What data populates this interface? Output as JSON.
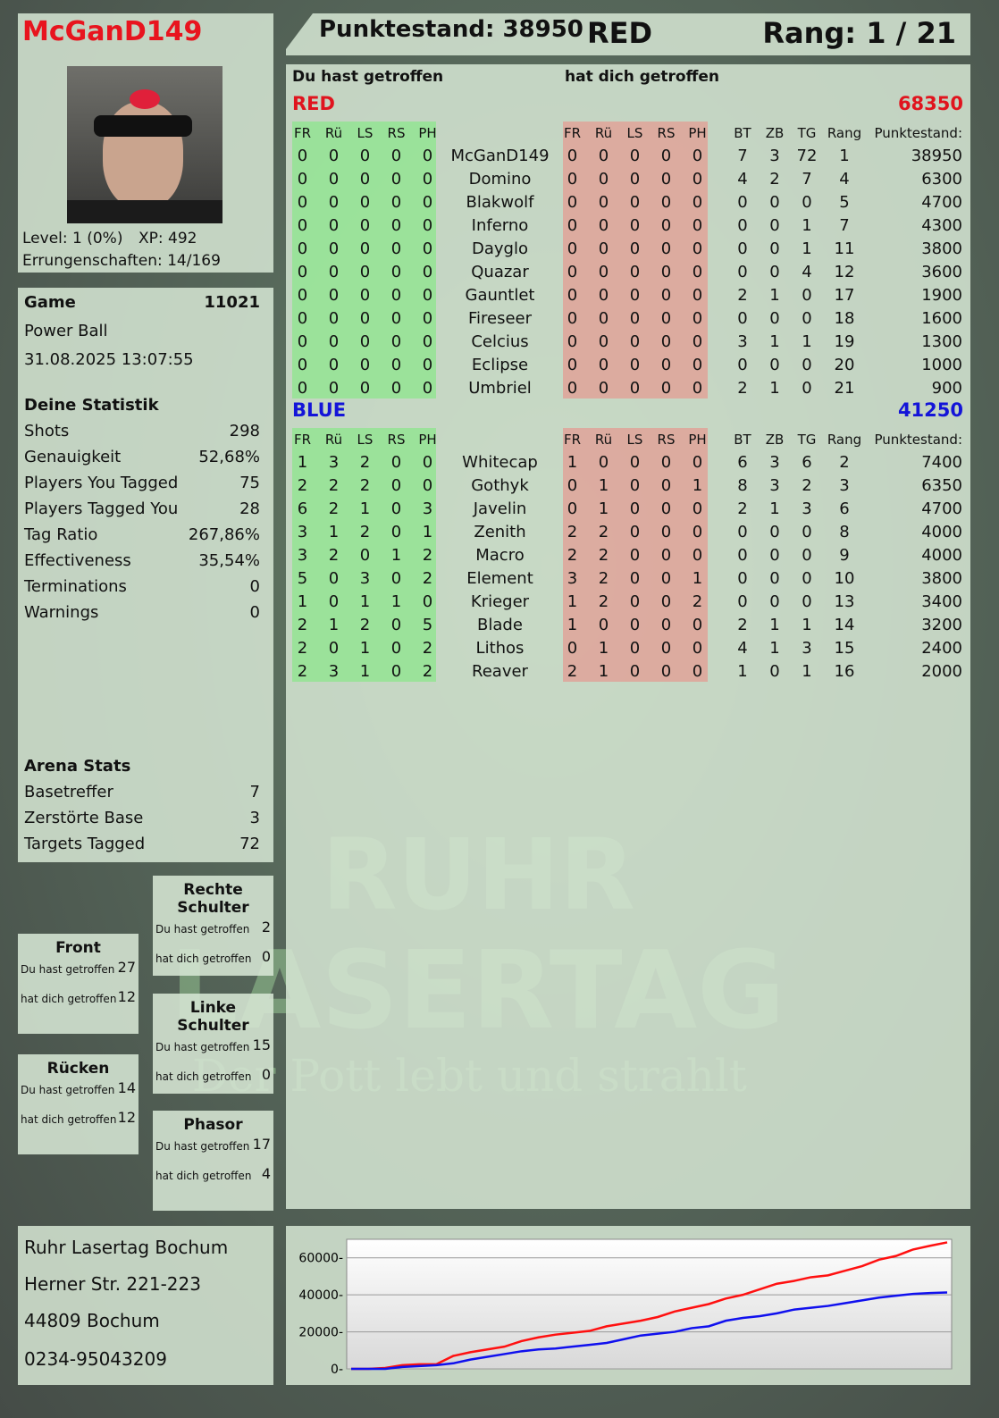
{
  "player": {
    "name": "McGanD149",
    "level": "Level: 1 (0%)",
    "xp": "XP: 492",
    "achievements": "Errungenschaften: 14/169"
  },
  "header": {
    "score": "Punktestand: 38950",
    "team": "RED",
    "rank": "Rang: 1 / 21"
  },
  "main": {
    "you_hit": "Du hast getroffen",
    "hit_you": "hat dich getroffen",
    "columns": [
      "FR",
      "Rü",
      "LS",
      "RS",
      "PH",
      "FR",
      "Rü",
      "LS",
      "RS",
      "PH",
      "BT",
      "ZB",
      "TG",
      "Rang",
      "Punktestand:"
    ],
    "teams": [
      {
        "name": "RED",
        "total": "68350",
        "color": "#e0141e",
        "rows": [
          [
            "0",
            "0",
            "0",
            "0",
            "0",
            "McGanD149",
            "0",
            "0",
            "0",
            "0",
            "0",
            "7",
            "3",
            "72",
            "1",
            "38950"
          ],
          [
            "0",
            "0",
            "0",
            "0",
            "0",
            "Domino",
            "0",
            "0",
            "0",
            "0",
            "0",
            "4",
            "2",
            "7",
            "4",
            "6300"
          ],
          [
            "0",
            "0",
            "0",
            "0",
            "0",
            "Blakwolf",
            "0",
            "0",
            "0",
            "0",
            "0",
            "0",
            "0",
            "0",
            "5",
            "4700"
          ],
          [
            "0",
            "0",
            "0",
            "0",
            "0",
            "Inferno",
            "0",
            "0",
            "0",
            "0",
            "0",
            "0",
            "0",
            "1",
            "7",
            "4300"
          ],
          [
            "0",
            "0",
            "0",
            "0",
            "0",
            "Dayglo",
            "0",
            "0",
            "0",
            "0",
            "0",
            "0",
            "0",
            "1",
            "11",
            "3800"
          ],
          [
            "0",
            "0",
            "0",
            "0",
            "0",
            "Quazar",
            "0",
            "0",
            "0",
            "0",
            "0",
            "0",
            "0",
            "4",
            "12",
            "3600"
          ],
          [
            "0",
            "0",
            "0",
            "0",
            "0",
            "Gauntlet",
            "0",
            "0",
            "0",
            "0",
            "0",
            "2",
            "1",
            "0",
            "17",
            "1900"
          ],
          [
            "0",
            "0",
            "0",
            "0",
            "0",
            "Fireseer",
            "0",
            "0",
            "0",
            "0",
            "0",
            "0",
            "0",
            "0",
            "18",
            "1600"
          ],
          [
            "0",
            "0",
            "0",
            "0",
            "0",
            "Celcius",
            "0",
            "0",
            "0",
            "0",
            "0",
            "3",
            "1",
            "1",
            "19",
            "1300"
          ],
          [
            "0",
            "0",
            "0",
            "0",
            "0",
            "Eclipse",
            "0",
            "0",
            "0",
            "0",
            "0",
            "0",
            "0",
            "0",
            "20",
            "1000"
          ],
          [
            "0",
            "0",
            "0",
            "0",
            "0",
            "Umbriel",
            "0",
            "0",
            "0",
            "0",
            "0",
            "2",
            "1",
            "0",
            "21",
            "900"
          ]
        ]
      },
      {
        "name": "BLUE",
        "total": "41250",
        "color": "#1414d8",
        "rows": [
          [
            "1",
            "3",
            "2",
            "0",
            "0",
            "Whitecap",
            "1",
            "0",
            "0",
            "0",
            "0",
            "6",
            "3",
            "6",
            "2",
            "7400"
          ],
          [
            "2",
            "2",
            "2",
            "0",
            "0",
            "Gothyk",
            "0",
            "1",
            "0",
            "0",
            "1",
            "8",
            "3",
            "2",
            "3",
            "6350"
          ],
          [
            "6",
            "2",
            "1",
            "0",
            "3",
            "Javelin",
            "0",
            "1",
            "0",
            "0",
            "0",
            "2",
            "1",
            "3",
            "6",
            "4700"
          ],
          [
            "3",
            "1",
            "2",
            "0",
            "1",
            "Zenith",
            "2",
            "2",
            "0",
            "0",
            "0",
            "0",
            "0",
            "0",
            "8",
            "4000"
          ],
          [
            "3",
            "2",
            "0",
            "1",
            "2",
            "Macro",
            "2",
            "2",
            "0",
            "0",
            "0",
            "0",
            "0",
            "0",
            "9",
            "4000"
          ],
          [
            "5",
            "0",
            "3",
            "0",
            "2",
            "Element",
            "3",
            "2",
            "0",
            "0",
            "1",
            "0",
            "0",
            "0",
            "10",
            "3800"
          ],
          [
            "1",
            "0",
            "1",
            "1",
            "0",
            "Krieger",
            "1",
            "2",
            "0",
            "0",
            "2",
            "0",
            "0",
            "0",
            "13",
            "3400"
          ],
          [
            "2",
            "1",
            "2",
            "0",
            "5",
            "Blade",
            "1",
            "0",
            "0",
            "0",
            "0",
            "2",
            "1",
            "1",
            "14",
            "3200"
          ],
          [
            "2",
            "0",
            "1",
            "0",
            "2",
            "Lithos",
            "0",
            "1",
            "0",
            "0",
            "0",
            "4",
            "1",
            "3",
            "15",
            "2400"
          ],
          [
            "2",
            "3",
            "1",
            "0",
            "2",
            "Reaver",
            "2",
            "1",
            "0",
            "0",
            "0",
            "1",
            "0",
            "1",
            "16",
            "2000"
          ]
        ]
      }
    ]
  },
  "game": {
    "label": "Game",
    "id": "11021",
    "mode": "Power Ball",
    "datetime": "31.08.2025 13:07:55"
  },
  "stats": {
    "title": "Deine Statistik",
    "items": [
      [
        "Shots",
        "298"
      ],
      [
        "Genauigkeit",
        "52,68%"
      ],
      [
        "Players You Tagged",
        "75"
      ],
      [
        "Players Tagged You",
        "28"
      ],
      [
        "Tag Ratio",
        "267,86%"
      ],
      [
        "Effectiveness",
        "35,54%"
      ],
      [
        "Terminations",
        "0"
      ],
      [
        "Warnings",
        "0"
      ]
    ]
  },
  "arena": {
    "title": "Arena Stats",
    "items": [
      [
        "Basetreffer",
        "7"
      ],
      [
        "Zerstörte Base",
        "3"
      ],
      [
        "Targets Tagged",
        "72"
      ]
    ]
  },
  "hits": [
    {
      "title": "Rechte Schulter",
      "you_hit": "Du hast getroffen",
      "you_hit_v": "2",
      "hit_you": "hat dich getroffen",
      "hit_you_v": "0"
    },
    {
      "title": "Front",
      "you_hit": "Du hast getroffen",
      "you_hit_v": "27",
      "hit_you": "hat dich getroffen",
      "hit_you_v": "12"
    },
    {
      "title": "Linke Schulter",
      "you_hit": "Du hast getroffen",
      "you_hit_v": "15",
      "hit_you": "hat dich getroffen",
      "hit_you_v": "0"
    },
    {
      "title": "Rücken",
      "you_hit": "Du hast getroffen",
      "you_hit_v": "14",
      "hit_you": "hat dich getroffen",
      "hit_you_v": "12"
    },
    {
      "title": "Phasor",
      "you_hit": "Du hast getroffen",
      "you_hit_v": "17",
      "hit_you": "hat dich getroffen",
      "hit_you_v": "4"
    }
  ],
  "address": {
    "name": "Ruhr Lasertag Bochum",
    "street": "Herner Str. 221-223",
    "city": "44809 Bochum",
    "phone": "0234-95043209"
  },
  "watermark": {
    "line1": "RUHR",
    "line2": "LASERTAG",
    "slogan": "Der Pott lebt und strahlt"
  },
  "chart_data": {
    "type": "line",
    "ylim": [
      0,
      70000
    ],
    "yticks": [
      "0",
      "20000",
      "40000",
      "60000"
    ],
    "grid": true,
    "series": [
      {
        "color": "#ff1010",
        "values": [
          0,
          0,
          500,
          2000,
          2500,
          2500,
          7000,
          9000,
          10500,
          12000,
          15000,
          17000,
          18500,
          19500,
          20500,
          23000,
          24500,
          26000,
          28000,
          31000,
          33000,
          35000,
          38000,
          40000,
          43000,
          46000,
          47500,
          49500,
          50500,
          53000,
          55500,
          59000,
          61000,
          64500,
          66500,
          68350
        ]
      },
      {
        "color": "#1010ee",
        "values": [
          0,
          0,
          0,
          1000,
          1500,
          2000,
          3000,
          5000,
          6500,
          8000,
          9500,
          10500,
          11000,
          12000,
          13000,
          14000,
          16000,
          18000,
          19000,
          20000,
          22000,
          23000,
          26000,
          27500,
          28500,
          30000,
          32000,
          33000,
          34000,
          35500,
          37000,
          38500,
          39500,
          40500,
          41000,
          41250
        ]
      }
    ]
  }
}
